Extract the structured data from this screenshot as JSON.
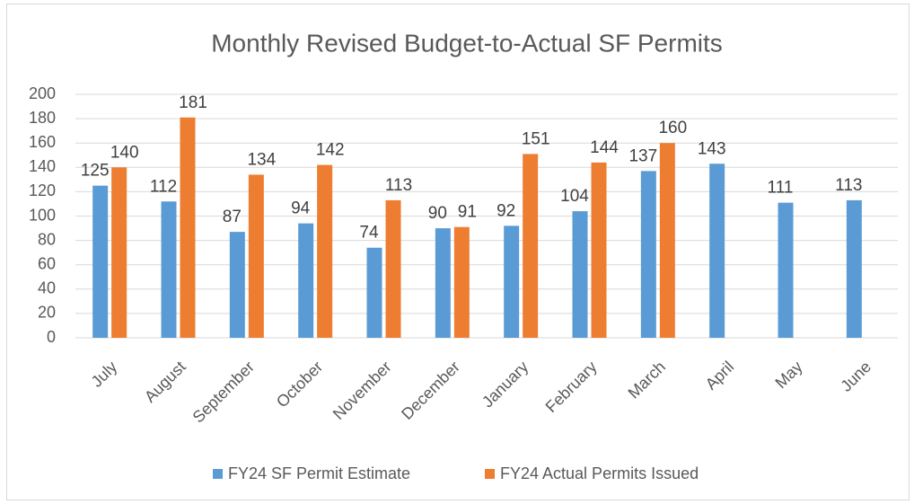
{
  "chart_data": {
    "type": "bar",
    "title": "Monthly Revised Budget-to-Actual SF Permits",
    "categories": [
      "July",
      "August",
      "September",
      "October",
      "November",
      "December",
      "January",
      "February",
      "March",
      "April",
      "May",
      "June"
    ],
    "series": [
      {
        "name": "FY24 SF Permit Estimate",
        "color": "#5b9bd5",
        "values": [
          125,
          112,
          87,
          94,
          74,
          90,
          92,
          104,
          137,
          143,
          111,
          113
        ]
      },
      {
        "name": "FY24 Actual Permits Issued",
        "color": "#ed7d31",
        "values": [
          140,
          181,
          134,
          142,
          113,
          91,
          151,
          144,
          160,
          null,
          null,
          null
        ]
      }
    ],
    "ylim": [
      0,
      200
    ],
    "yticks": [
      0,
      20,
      40,
      60,
      80,
      100,
      120,
      140,
      160,
      180,
      200
    ],
    "grid": true,
    "legend": "bottom"
  }
}
